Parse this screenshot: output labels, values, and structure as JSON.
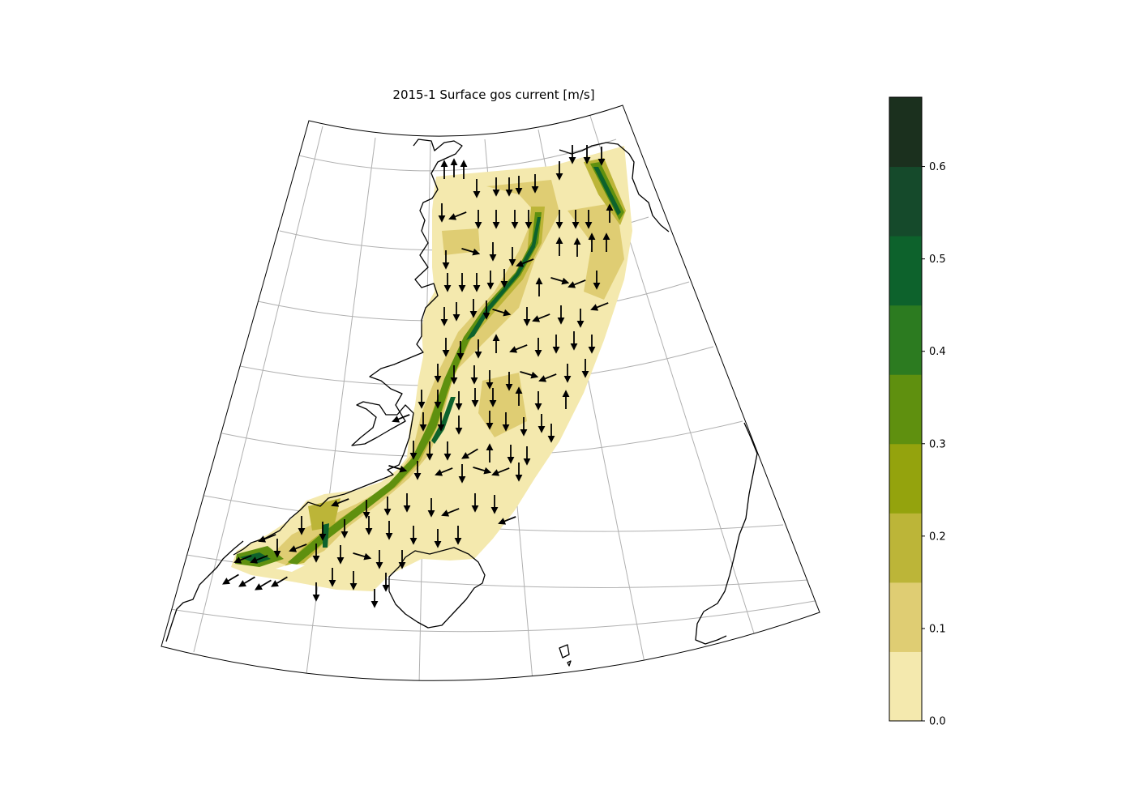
{
  "title": "2015-1 Surface gos current [m/s]",
  "colorbar": {
    "ticks": [
      "0.0",
      "0.1",
      "0.2",
      "0.3",
      "0.4",
      "0.5",
      "0.6"
    ],
    "levels": [
      {
        "min": 0.0,
        "max": 0.075,
        "color": "#f4e9ae"
      },
      {
        "min": 0.075,
        "max": 0.15,
        "color": "#dfcd73"
      },
      {
        "min": 0.15,
        "max": 0.225,
        "color": "#bcb538"
      },
      {
        "min": 0.225,
        "max": 0.3,
        "color": "#94a30d"
      },
      {
        "min": 0.3,
        "max": 0.375,
        "color": "#5f900f"
      },
      {
        "min": 0.375,
        "max": 0.45,
        "color": "#2c7b20"
      },
      {
        "min": 0.45,
        "max": 0.525,
        "color": "#0d622c"
      },
      {
        "min": 0.525,
        "max": 0.6,
        "color": "#154a2b"
      },
      {
        "min": 0.6,
        "max": 0.675,
        "color": "#1b301e"
      }
    ]
  },
  "colors": {
    "land_outline": "#000000",
    "gridline": "#b0b0b0",
    "arrow": "#000000"
  }
}
